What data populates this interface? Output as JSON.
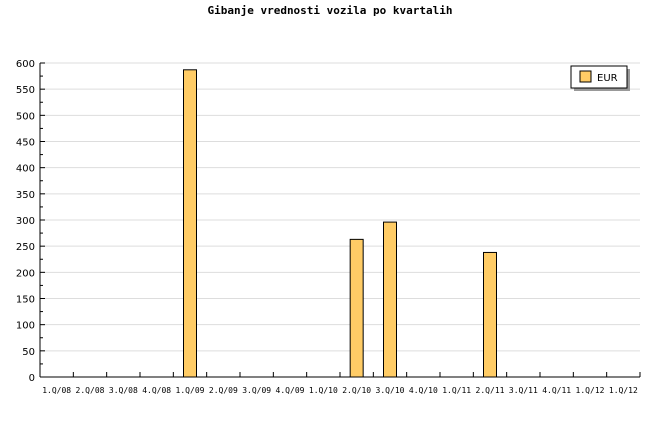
{
  "chart_data": {
    "type": "bar",
    "title": "Gibanje vrednosti vozila po kvartalih",
    "categories": [
      "1.Q/08",
      "2.Q/08",
      "3.Q/08",
      "4.Q/08",
      "1.Q/09",
      "2.Q/09",
      "3.Q/09",
      "4.Q/09",
      "1.Q/10",
      "2.Q/10",
      "3.Q/10",
      "4.Q/10",
      "1.Q/11",
      "2.Q/11",
      "3.Q/11",
      "4.Q/11",
      "1.Q/12",
      "1.Q/12"
    ],
    "series": [
      {
        "name": "EUR",
        "color": "#ffcc66",
        "values": [
          0,
          0,
          0,
          0,
          587,
          0,
          0,
          0,
          0,
          263,
          296,
          0,
          0,
          238,
          0,
          0,
          0,
          0
        ]
      }
    ],
    "xlabel": "",
    "ylabel": "",
    "ylim": [
      0,
      600
    ],
    "yticks": [
      0,
      50,
      100,
      150,
      200,
      250,
      300,
      350,
      400,
      450,
      500,
      550,
      600
    ],
    "grid": true,
    "legend": "top-right"
  }
}
